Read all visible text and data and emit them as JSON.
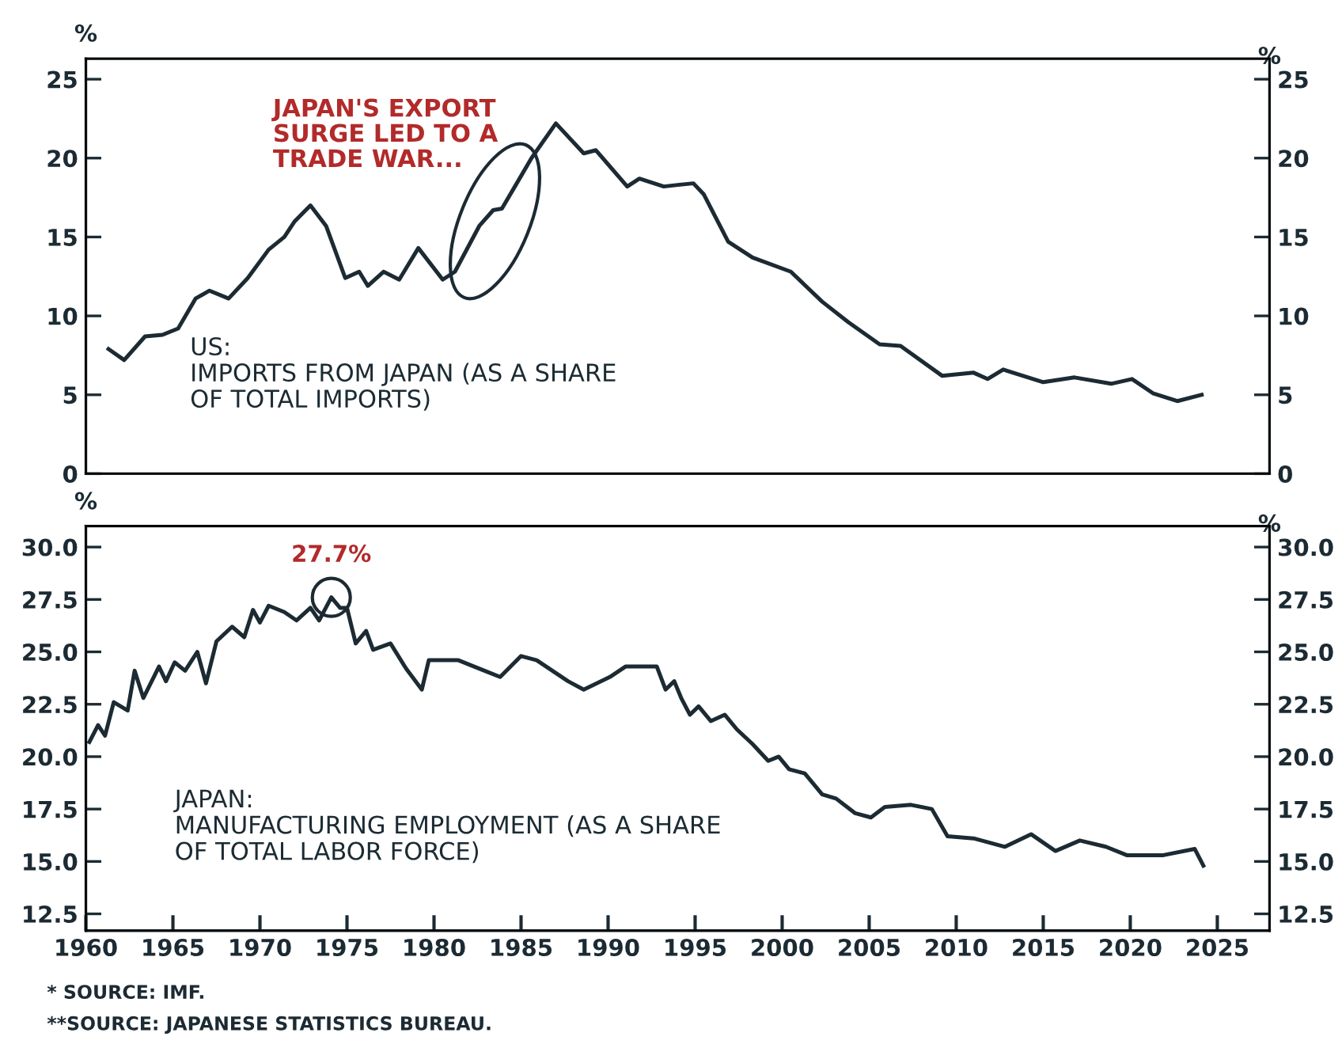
{
  "chart_data": [
    {
      "type": "line",
      "ylabel": "%",
      "y2label": "%",
      "annotations": [
        {
          "text": "JAPAN'S EXPORT\nSURGE LED TO A\nTRADE WAR...",
          "x": 1983.5,
          "y": 16.0
        },
        "US:\nIMPORTS FROM JAPAN (AS A SHARE\nOF TOTAL IMPORTS)"
      ],
      "xlim": [
        1960,
        2028
      ],
      "xticks": [
        1960,
        1965,
        1970,
        1975,
        1980,
        1985,
        1990,
        1995,
        2000,
        2005,
        2010,
        2015,
        2020,
        2025
      ],
      "ylim": [
        0,
        26.3
      ],
      "yticks": [
        0,
        5,
        10,
        15,
        20,
        25
      ],
      "y2lim": [
        0,
        26.3
      ],
      "y2ticks": [
        0,
        5,
        10,
        15,
        20,
        25
      ],
      "tick_labels": "y",
      "grid": false,
      "legend": false,
      "series": [
        {
          "color": "#1c2b33",
          "x": [
            1961.3,
            1962.2,
            1963.4,
            1964.4,
            1965.3,
            1966.3,
            1967.1,
            1968.2,
            1969.3,
            1970.5,
            1971.4,
            1972.0,
            1972.9,
            1973.8,
            1974.9,
            1975.7,
            1976.2,
            1977.1,
            1978.0,
            1979.1,
            1980.5,
            1981.2,
            1982.6,
            1983.4,
            1983.9,
            1984.7,
            1985.6,
            1987.0,
            1988.6,
            1989.3,
            1991.1,
            1991.8,
            1993.2,
            1994.0,
            1994.9,
            1995.5,
            1996.9,
            1998.3,
            2000.5,
            2002.3,
            2003.8,
            2005.6,
            2006.8,
            2009.2,
            2011.0,
            2011.8,
            2012.7,
            2015.0,
            2016.8,
            2018.9,
            2020.1,
            2021.3,
            2022.7,
            2024.1
          ],
          "values": [
            7.9,
            7.2,
            8.7,
            8.8,
            9.2,
            11.1,
            11.6,
            11.1,
            12.4,
            14.2,
            15.0,
            16.0,
            17.0,
            15.7,
            12.4,
            12.8,
            11.9,
            12.8,
            12.3,
            14.3,
            12.3,
            12.8,
            15.7,
            16.7,
            16.8,
            18.3,
            20.0,
            22.2,
            20.3,
            20.5,
            18.2,
            18.7,
            18.2,
            18.3,
            18.4,
            17.7,
            14.7,
            13.7,
            12.8,
            10.9,
            9.6,
            8.2,
            8.1,
            6.2,
            6.4,
            6.0,
            6.6,
            5.8,
            6.1,
            5.7,
            6.0,
            5.1,
            4.6,
            5.0
          ]
        }
      ]
    },
    {
      "type": "line",
      "ylabel": "%",
      "y2label": "%",
      "annotations": [
        {
          "text": "27.7%",
          "x": 1974.1,
          "y": 27.6
        },
        "JAPAN:\nMANUFACTURING EMPLOYMENT (AS A SHARE\nOF TOTAL LABOR FORCE)",
        "* SOURCE: IMF.",
        "**SOURCE: JAPANESE STATISTICS BUREAU."
      ],
      "xlim": [
        1960,
        2028
      ],
      "xticks": [
        1960,
        1965,
        1970,
        1975,
        1980,
        1985,
        1990,
        1995,
        2000,
        2005,
        2010,
        2015,
        2020,
        2025
      ],
      "ylim": [
        11.7,
        31.0
      ],
      "yticks": [
        {
          "value": 12.5,
          "label": "12.5"
        },
        {
          "value": 15,
          "label": "15.0"
        },
        {
          "value": 17.5,
          "label": "17.5"
        },
        {
          "value": 20,
          "label": "20.0"
        },
        {
          "value": 22.5,
          "label": "22.5"
        },
        {
          "value": 25,
          "label": "25.0"
        },
        {
          "value": 27.5,
          "label": "27.5"
        },
        {
          "value": 30,
          "label": "30.0"
        }
      ],
      "y2lim": [
        11.7,
        31.0
      ],
      "y2ticks": [
        {
          "value": 12.5,
          "label": "12.5"
        },
        {
          "value": 15,
          "label": "15.0"
        },
        {
          "value": 17.5,
          "label": "17.5"
        },
        {
          "value": 20,
          "label": "20.0"
        },
        {
          "value": 22.5,
          "label": "22.5"
        },
        {
          "value": 25,
          "label": "25.0"
        },
        {
          "value": 27.5,
          "label": "27.5"
        },
        {
          "value": 30,
          "label": "30.0"
        }
      ],
      "grid": false,
      "legend": false,
      "series": [
        {
          "color": "#1c2b33",
          "x": [
            1960.2,
            1960.7,
            1961.1,
            1961.6,
            1962.4,
            1962.8,
            1963.3,
            1964.2,
            1964.6,
            1965.1,
            1965.7,
            1966.4,
            1966.9,
            1967.5,
            1968.4,
            1969.1,
            1969.6,
            1970.0,
            1970.5,
            1971.4,
            1972.1,
            1972.9,
            1973.4,
            1974.1,
            1974.6,
            1975.0,
            1975.5,
            1976.1,
            1976.5,
            1977.5,
            1978.4,
            1979.3,
            1979.7,
            1981.4,
            1982.9,
            1983.8,
            1985.0,
            1985.9,
            1987.7,
            1988.6,
            1990.1,
            1991.0,
            1992.8,
            1993.3,
            1993.8,
            1994.2,
            1994.7,
            1995.2,
            1995.9,
            1996.7,
            1997.4,
            1998.3,
            1999.2,
            1999.8,
            2000.4,
            2001.3,
            2002.3,
            2003.1,
            2004.2,
            2005.1,
            2005.9,
            2007.4,
            2008.6,
            2009.5,
            2011.0,
            2012.8,
            2014.3,
            2015.7,
            2017.1,
            2018.6,
            2019.8,
            2021.9,
            2023.7,
            2024.2
          ],
          "values": [
            20.7,
            21.5,
            21.0,
            22.6,
            22.2,
            24.1,
            22.8,
            24.3,
            23.6,
            24.5,
            24.1,
            25.0,
            23.5,
            25.5,
            26.2,
            25.7,
            27.0,
            26.4,
            27.2,
            26.9,
            26.5,
            27.1,
            26.5,
            27.6,
            27.1,
            27.1,
            25.4,
            26.0,
            25.1,
            25.4,
            24.2,
            23.2,
            24.6,
            24.6,
            24.1,
            23.8,
            24.8,
            24.6,
            23.6,
            23.2,
            23.8,
            24.3,
            24.3,
            23.2,
            23.6,
            22.8,
            22.0,
            22.4,
            21.7,
            22.0,
            21.3,
            20.6,
            19.8,
            20.0,
            19.4,
            19.2,
            18.2,
            18.0,
            17.3,
            17.1,
            17.6,
            17.7,
            17.5,
            16.2,
            16.1,
            15.7,
            16.3,
            15.5,
            16.0,
            15.7,
            15.3,
            15.3,
            15.6,
            14.8
          ]
        }
      ]
    }
  ]
}
